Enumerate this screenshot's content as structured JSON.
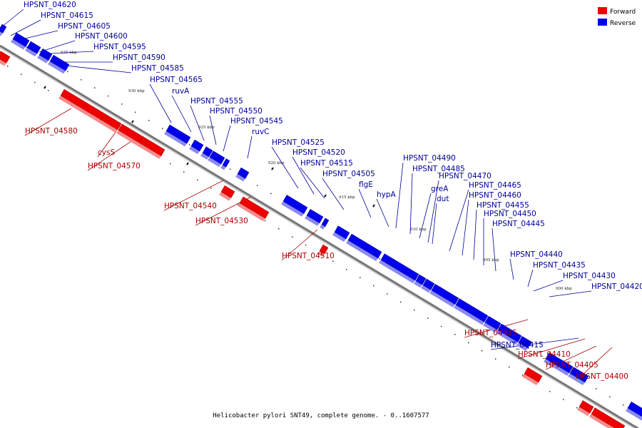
{
  "caption": "Helicobacter pylori SNT49, complete genome. - 0..1607577",
  "legend": [
    {
      "label": "Forward",
      "color": "#ee0000"
    },
    {
      "label": "Reverse",
      "color": "#0000ee"
    }
  ],
  "kbp_labels": [
    "935 kbp",
    "930 kbp",
    "925 kbp",
    "920 kbp",
    "915 kbp",
    "910 kbp",
    "905 kbp",
    "900 kbp"
  ],
  "forward_labels": [
    "HPSNT_04580",
    "cysS",
    "HPSNT_04570",
    "HPSNT_04540",
    "HPSNT_04530",
    "HPSNT_04510",
    "HPSNT_04425",
    "HPSNT_04410",
    "HPSNT_04405",
    "HPSNT_04400"
  ],
  "reverse_labels": [
    "HPSNT_04620",
    "HPSNT_04615",
    "HPSNT_04605",
    "HPSNT_04600",
    "HPSNT_04595",
    "HPSNT_04590",
    "HPSNT_04585",
    "HPSNT_04565",
    "ruvA",
    "HPSNT_04555",
    "HPSNT_04550",
    "HPSNT_04545",
    "ruvC",
    "HPSNT_04525",
    "HPSNT_04520",
    "HPSNT_04515",
    "HPSNT_04505",
    "flgE",
    "hypA",
    "HPSNT_04490",
    "HPSNT_04485",
    "greA",
    "HPSNT_04470",
    "dut",
    "HPSNT_04465",
    "HPSNT_04460",
    "HPSNT_04455",
    "HPSNT_04450",
    "HPSNT_04445",
    "HPSNT_04440",
    "HPSNT_04435",
    "HPSNT_04430",
    "HPSNT_04420",
    "HPSNT_04415"
  ]
}
